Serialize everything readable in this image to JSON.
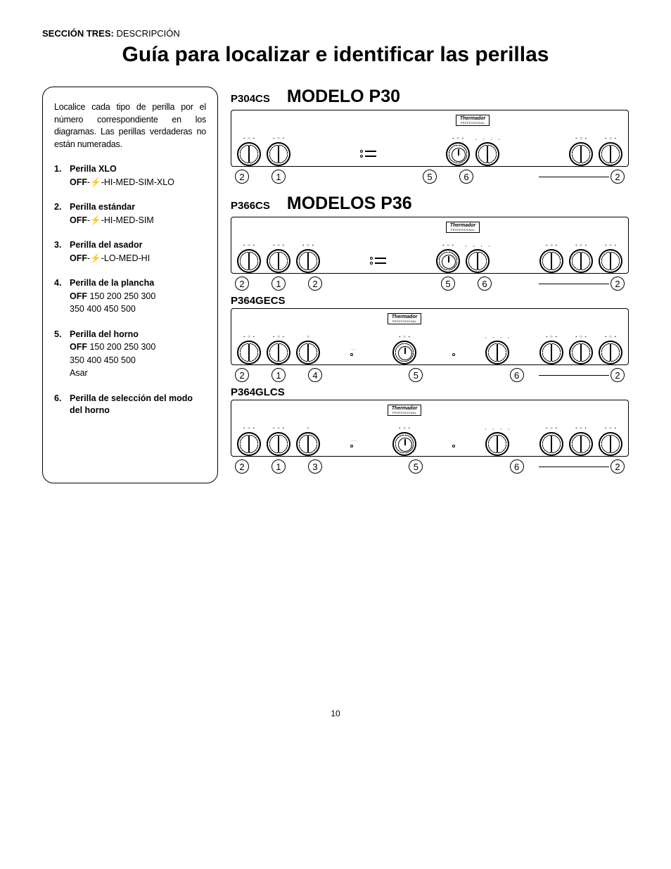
{
  "section": {
    "label_bold": "SECCIÓN TRES:",
    "label_rest": " DESCRIPCIÓN"
  },
  "title": "Guía para localizar e identificar las perillas",
  "legend": {
    "intro": "Localice cada tipo de perilla por el número correspondiente en los diagramas. Las perillas verdaderas no están numeradas.",
    "items": [
      {
        "num": "1.",
        "name": "Perilla XLO",
        "detail_off": "OFF",
        "detail_rest": "-⚡-HI-MED-SIM-XLO"
      },
      {
        "num": "2.",
        "name": "Perilla estándar",
        "detail_off": "OFF",
        "detail_rest": "-⚡-HI-MED-SIM"
      },
      {
        "num": "3.",
        "name": "Perilla del asador",
        "detail_off": "OFF",
        "detail_rest": "-⚡-LO-MED-HI"
      },
      {
        "num": "4.",
        "name": "Perilla de la plancha",
        "detail_off": "OFF",
        "detail_rest": "  150  200  250  300",
        "sub": "350  400  450  500"
      },
      {
        "num": "5.",
        "name": "Perilla del horno",
        "detail_off": "OFF",
        "detail_rest": "  150  200  250  300",
        "sub": "350  400  450  500",
        "sub2": "Asar"
      },
      {
        "num": "6.",
        "name": "Perilla de selección del modo del horno",
        "detail_off": "",
        "detail_rest": ""
      }
    ]
  },
  "brand": "Thermador",
  "brand_sub": "PROFESSIONAL",
  "models": [
    {
      "title": "MODELO P30",
      "panels": [
        {
          "code": "P304CS",
          "layout": "p30",
          "labels_left": [
            "2",
            "1"
          ],
          "labels_mid": [
            "5",
            "6"
          ],
          "labels_right": [
            "2"
          ]
        }
      ]
    },
    {
      "title": "MODELOS P36",
      "panels": [
        {
          "code": "P366CS",
          "layout": "p36_6",
          "labels_left": [
            "2",
            "1",
            "2"
          ],
          "labels_mid": [
            "5",
            "6"
          ],
          "labels_right": [
            "2"
          ]
        },
        {
          "code": "P364GECS",
          "layout": "p36_4g",
          "labels_left": [
            "2",
            "1",
            "4"
          ],
          "labels_mid": [
            "5"
          ],
          "labels_mid2": [
            "6"
          ],
          "labels_right": [
            "2"
          ]
        },
        {
          "code": "P364GLCS",
          "layout": "p36_4g",
          "labels_left": [
            "2",
            "1",
            "3"
          ],
          "labels_mid": [
            "5"
          ],
          "labels_mid2": [
            "6"
          ],
          "labels_right": [
            "2"
          ]
        }
      ]
    }
  ],
  "page_number": "10",
  "colors": {
    "text": "#000000",
    "bg": "#ffffff",
    "border": "#000000"
  }
}
